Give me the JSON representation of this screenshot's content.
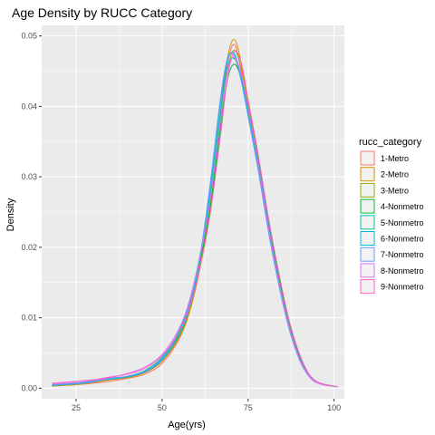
{
  "chart_data": {
    "type": "line",
    "title": "Age Density by RUCC Category",
    "xlabel": "Age(yrs)",
    "ylabel": "Density",
    "xlim": [
      15,
      103
    ],
    "ylim": [
      -0.0015,
      0.0515
    ],
    "x_ticks": [
      25,
      50,
      75,
      100
    ],
    "x_tick_labels": [
      "25",
      "50",
      "75",
      "100"
    ],
    "y_ticks": [
      0.0,
      0.01,
      0.02,
      0.03,
      0.04,
      0.05
    ],
    "y_tick_labels": [
      "0.00",
      "0.01",
      "0.02",
      "0.03",
      "0.04",
      "0.05"
    ],
    "grid": true,
    "legend": {
      "title": "rucc_category",
      "placement": "right"
    },
    "x": [
      18,
      25,
      30,
      35,
      40,
      45,
      50,
      55,
      58,
      61,
      64,
      67,
      69,
      71,
      73,
      75,
      78,
      81,
      84,
      87,
      90,
      93,
      96,
      101
    ],
    "series": [
      {
        "name": "1-Metro",
        "color": "#F8766D",
        "values": [
          0.0004,
          0.0005,
          0.0007,
          0.001,
          0.0014,
          0.002,
          0.0035,
          0.007,
          0.011,
          0.0175,
          0.0265,
          0.0385,
          0.046,
          0.0488,
          0.045,
          0.0395,
          0.0315,
          0.0225,
          0.015,
          0.0085,
          0.004,
          0.0015,
          0.0006,
          0.0002
        ]
      },
      {
        "name": "2-Metro",
        "color": "#D39200",
        "values": [
          0.0003,
          0.0005,
          0.0008,
          0.0012,
          0.0015,
          0.0022,
          0.0038,
          0.0072,
          0.0108,
          0.017,
          0.0262,
          0.039,
          0.0468,
          0.0495,
          0.0462,
          0.04,
          0.032,
          0.023,
          0.0152,
          0.0088,
          0.0042,
          0.0016,
          0.0006,
          0.0002
        ]
      },
      {
        "name": "3-Metro",
        "color": "#93AA00",
        "values": [
          0.0005,
          0.0006,
          0.0009,
          0.0013,
          0.0016,
          0.0023,
          0.004,
          0.0074,
          0.0112,
          0.0172,
          0.0258,
          0.0378,
          0.0452,
          0.048,
          0.0455,
          0.0405,
          0.0325,
          0.0232,
          0.0155,
          0.009,
          0.0043,
          0.0017,
          0.0007,
          0.0002
        ]
      },
      {
        "name": "4-Nonmetro",
        "color": "#00BA38",
        "values": [
          0.0004,
          0.0006,
          0.0009,
          0.0014,
          0.0016,
          0.0024,
          0.0042,
          0.0078,
          0.0118,
          0.018,
          0.0255,
          0.0368,
          0.0438,
          0.046,
          0.044,
          0.0398,
          0.0322,
          0.0235,
          0.0158,
          0.0092,
          0.0045,
          0.0018,
          0.0007,
          0.0002
        ]
      },
      {
        "name": "5-Nonmetro",
        "color": "#00C19F",
        "values": [
          0.0005,
          0.0007,
          0.001,
          0.0014,
          0.0017,
          0.0025,
          0.0044,
          0.0082,
          0.0124,
          0.0188,
          0.0272,
          0.0392,
          0.0455,
          0.0468,
          0.0442,
          0.0395,
          0.0318,
          0.0228,
          0.015,
          0.0086,
          0.0041,
          0.0016,
          0.0006,
          0.0002
        ]
      },
      {
        "name": "6-Nonmetro",
        "color": "#00B9E3",
        "values": [
          0.0004,
          0.0006,
          0.001,
          0.0013,
          0.0016,
          0.0023,
          0.004,
          0.0076,
          0.0115,
          0.0182,
          0.0282,
          0.0405,
          0.0465,
          0.0475,
          0.044,
          0.039,
          0.0312,
          0.0222,
          0.0146,
          0.0084,
          0.004,
          0.0016,
          0.0006,
          0.0002
        ]
      },
      {
        "name": "7-Nonmetro",
        "color": "#619CFF",
        "values": [
          0.0005,
          0.0006,
          0.0009,
          0.0014,
          0.0017,
          0.0024,
          0.0042,
          0.008,
          0.012,
          0.0186,
          0.029,
          0.0412,
          0.0468,
          0.0472,
          0.0436,
          0.0386,
          0.0308,
          0.022,
          0.0145,
          0.0083,
          0.004,
          0.0015,
          0.0006,
          0.0002
        ]
      },
      {
        "name": "8-Nonmetro",
        "color": "#DB72FB",
        "values": [
          0.0006,
          0.0008,
          0.0011,
          0.0015,
          0.0021,
          0.003,
          0.0048,
          0.0085,
          0.0125,
          0.0185,
          0.0268,
          0.038,
          0.045,
          0.047,
          0.0445,
          0.0398,
          0.0318,
          0.0228,
          0.015,
          0.0087,
          0.0042,
          0.0016,
          0.0006,
          0.0002
        ]
      },
      {
        "name": "9-Nonmetro",
        "color": "#FF61C3",
        "values": [
          0.0007,
          0.001,
          0.0012,
          0.0016,
          0.002,
          0.0028,
          0.0046,
          0.008,
          0.0115,
          0.017,
          0.0248,
          0.036,
          0.044,
          0.0478,
          0.0462,
          0.041,
          0.033,
          0.024,
          0.0162,
          0.0095,
          0.0048,
          0.0018,
          0.0007,
          0.0002
        ]
      }
    ]
  }
}
